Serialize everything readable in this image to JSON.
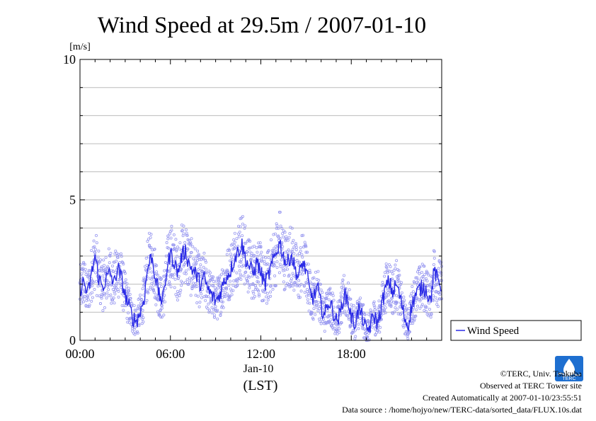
{
  "chart_data": {
    "type": "line",
    "title": "Wind Speed at 29.5m / 2007-01-10",
    "ylabel_unit": "[m/s]",
    "xlabel_date": "Jan-10",
    "xlabel_tz": "(LST)",
    "ylim": [
      0,
      10
    ],
    "xlim_hours": [
      0,
      24
    ],
    "y_ticks": [
      "0",
      "5",
      "10"
    ],
    "x_ticks": [
      {
        "hour": 0,
        "label": "00:00"
      },
      {
        "hour": 6,
        "label": "06:00"
      },
      {
        "hour": 12,
        "label": "12:00"
      },
      {
        "hour": 18,
        "label": "18:00"
      }
    ],
    "grid": "horizontal every 1 m/s",
    "legend": "lower-right, outside plot",
    "series": [
      {
        "name": "Wind Speed",
        "color": "#2a2ae6",
        "scatter_color": "#9a9af0",
        "x_hours": [
          0.0,
          0.25,
          0.5,
          0.75,
          1.0,
          1.25,
          1.5,
          1.75,
          2.0,
          2.25,
          2.5,
          2.75,
          3.0,
          3.25,
          3.5,
          3.75,
          4.0,
          4.25,
          4.5,
          4.75,
          5.0,
          5.25,
          5.5,
          5.75,
          6.0,
          6.25,
          6.5,
          6.75,
          7.0,
          7.25,
          7.5,
          7.75,
          8.0,
          8.25,
          8.5,
          8.75,
          9.0,
          9.25,
          9.5,
          9.75,
          10.0,
          10.25,
          10.5,
          10.75,
          11.0,
          11.25,
          11.5,
          11.75,
          12.0,
          12.25,
          12.5,
          12.75,
          13.0,
          13.25,
          13.5,
          13.75,
          14.0,
          14.25,
          14.5,
          14.75,
          15.0,
          15.25,
          15.5,
          15.75,
          16.0,
          16.25,
          16.5,
          16.75,
          17.0,
          17.25,
          17.5,
          17.75,
          18.0,
          18.25,
          18.5,
          18.75,
          19.0,
          19.25,
          19.5,
          19.75,
          20.0,
          20.25,
          20.5,
          20.75,
          21.0,
          21.25,
          21.5,
          21.75,
          22.0,
          22.25,
          22.5,
          22.75,
          23.0,
          23.25,
          23.5,
          23.75,
          24.0
        ],
        "values": [
          1.8,
          2.1,
          1.6,
          2.3,
          3.0,
          2.2,
          1.9,
          2.2,
          2.4,
          2.0,
          2.6,
          2.2,
          1.6,
          1.2,
          0.8,
          0.7,
          1.0,
          1.5,
          2.6,
          3.0,
          2.3,
          1.6,
          1.4,
          2.5,
          3.1,
          2.8,
          2.4,
          3.0,
          3.2,
          2.7,
          2.5,
          2.3,
          2.0,
          2.2,
          1.8,
          1.6,
          1.4,
          1.6,
          2.0,
          2.3,
          2.5,
          2.9,
          3.2,
          3.4,
          2.9,
          2.6,
          2.4,
          2.8,
          2.4,
          2.0,
          2.3,
          2.7,
          3.1,
          3.5,
          3.0,
          2.7,
          3.1,
          2.6,
          2.2,
          2.8,
          2.5,
          1.7,
          1.5,
          1.9,
          1.2,
          0.9,
          1.4,
          1.1,
          0.7,
          0.9,
          1.6,
          1.5,
          0.8,
          0.6,
          1.1,
          0.8,
          0.3,
          0.5,
          0.9,
          0.6,
          1.2,
          1.8,
          2.1,
          1.7,
          2.0,
          1.5,
          0.9,
          0.5,
          1.2,
          1.6,
          1.8,
          1.9,
          1.8,
          1.4,
          2.5,
          2.1,
          1.9
        ]
      }
    ]
  },
  "footer": {
    "copyright": "©TERC, Univ. Tsukuba",
    "observed": "Observed at TERC Tower site",
    "created": "Created Automatically at 2007-01-10/23:55:51",
    "source": "Data source : /home/hojyo/new/TERC-data/sorted_data/FLUX.10s.dat",
    "logo_text": "TERC"
  }
}
